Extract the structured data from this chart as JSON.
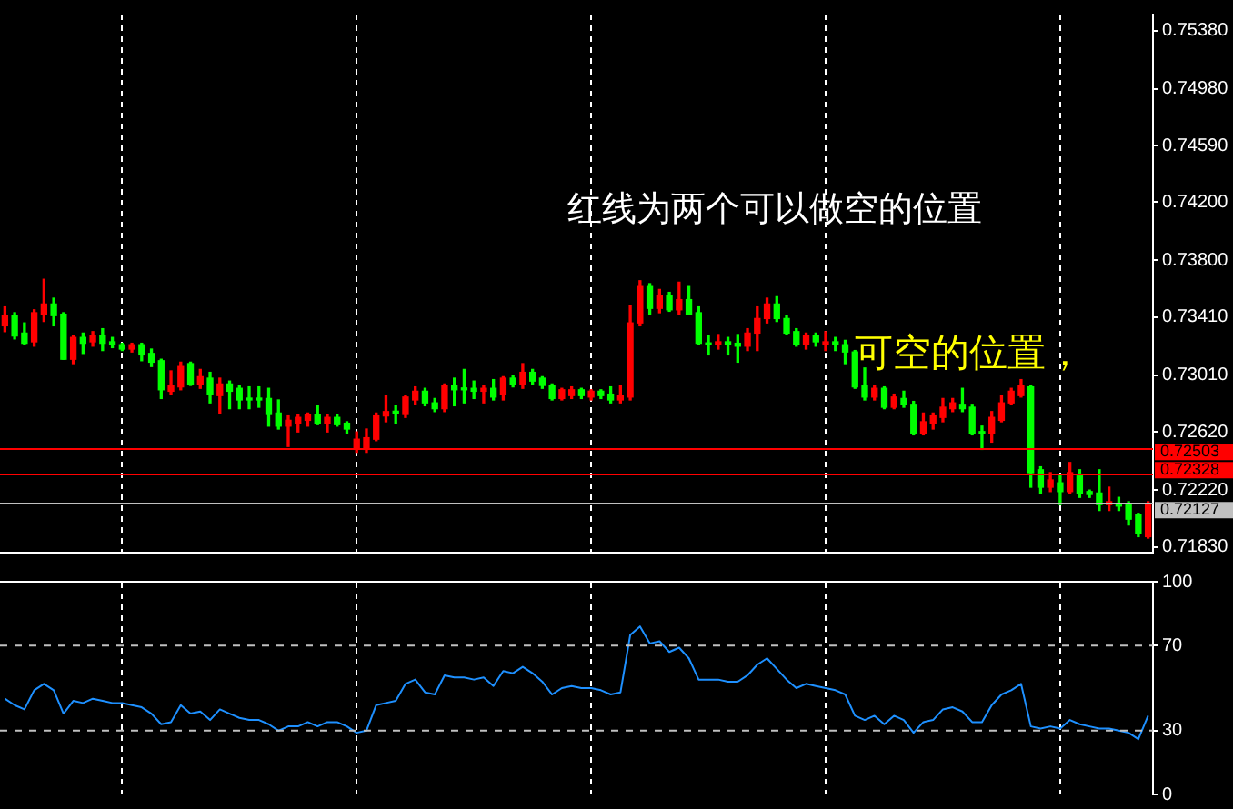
{
  "chart_data": [
    {
      "type": "candlestick",
      "categories": [
        null,
        null,
        null,
        null,
        null,
        null,
        null,
        null,
        null,
        null,
        null,
        null,
        null,
        null,
        null,
        null,
        null,
        null,
        null,
        null,
        null,
        null,
        null,
        null,
        null,
        null,
        null,
        null,
        null,
        null,
        null,
        null,
        null,
        null,
        null,
        null,
        null,
        null,
        null,
        null,
        null,
        null,
        null,
        null,
        null,
        null,
        null,
        null,
        null,
        null,
        null,
        null,
        null,
        null,
        null,
        null,
        null,
        null,
        null,
        null,
        null,
        null,
        null,
        null,
        null,
        null,
        null,
        null,
        null,
        null,
        null,
        null,
        null,
        null,
        null,
        null,
        null,
        null,
        null,
        null,
        null,
        null,
        null,
        null,
        null,
        null,
        null,
        null,
        null,
        null,
        null,
        null,
        null,
        null,
        null,
        null,
        null,
        null,
        null,
        null,
        null,
        null,
        null,
        null,
        null,
        null,
        null,
        null,
        null,
        null,
        null,
        null,
        null,
        null,
        null,
        null,
        null,
        null
      ],
      "ohlc": [
        [
          0.7335,
          0.7348,
          0.7331,
          0.7342
        ],
        [
          0.7342,
          0.7344,
          0.7326,
          0.7328
        ],
        [
          0.733,
          0.7337,
          0.7322,
          0.7323
        ],
        [
          0.7324,
          0.7346,
          0.7321,
          0.7344
        ],
        [
          0.7343,
          0.7367,
          0.7338,
          0.735
        ],
        [
          0.735,
          0.7354,
          0.7335,
          0.7342
        ],
        [
          0.7343,
          0.7344,
          0.7312,
          0.7312
        ],
        [
          0.7312,
          0.7328,
          0.7309,
          0.7327
        ],
        [
          0.7327,
          0.733,
          0.7316,
          0.7323
        ],
        [
          0.7324,
          0.7331,
          0.7321,
          0.7328
        ],
        [
          0.7328,
          0.7333,
          0.7318,
          0.7323
        ],
        [
          0.7324,
          0.7327,
          0.732,
          0.7322
        ],
        [
          0.7322,
          0.7323,
          0.7318,
          0.7319
        ],
        [
          0.7319,
          0.7323,
          0.7317,
          0.7322
        ],
        [
          0.7322,
          0.7323,
          0.7311,
          0.7315
        ],
        [
          0.7316,
          0.7319,
          0.7307,
          0.731
        ],
        [
          0.7311,
          0.7312,
          0.7285,
          0.7291
        ],
        [
          0.729,
          0.7304,
          0.7288,
          0.7294
        ],
        [
          0.7293,
          0.731,
          0.7291,
          0.7307
        ],
        [
          0.7309,
          0.731,
          0.7294,
          0.7295
        ],
        [
          0.7295,
          0.7305,
          0.7292,
          0.73
        ],
        [
          0.7299,
          0.7303,
          0.7282,
          0.7288
        ],
        [
          0.7287,
          0.7299,
          0.7275,
          0.7295
        ],
        [
          0.7295,
          0.7297,
          0.7278,
          0.729
        ],
        [
          0.7292,
          0.7294,
          0.7278,
          0.7284
        ],
        [
          0.7285,
          0.7293,
          0.7278,
          0.7284
        ],
        [
          0.7285,
          0.7293,
          0.7279,
          0.7284
        ],
        [
          0.7285,
          0.7292,
          0.7266,
          0.7274
        ],
        [
          0.7275,
          0.7284,
          0.7264,
          0.7266
        ],
        [
          0.7266,
          0.7273,
          0.7252,
          0.727
        ],
        [
          0.7268,
          0.7274,
          0.7262,
          0.7272
        ],
        [
          0.727,
          0.7275,
          0.7266,
          0.7274
        ],
        [
          0.7274,
          0.728,
          0.7267,
          0.7268
        ],
        [
          0.7268,
          0.7274,
          0.7262,
          0.7272
        ],
        [
          0.7272,
          0.7274,
          0.7266,
          0.7267
        ],
        [
          0.7268,
          0.7269,
          0.7261,
          0.7264
        ],
        [
          0.725,
          0.7262,
          0.7248,
          0.7257
        ],
        [
          0.725,
          0.7264,
          0.7248,
          0.7258
        ],
        [
          0.7257,
          0.7275,
          0.7256,
          0.7273
        ],
        [
          0.7273,
          0.7287,
          0.7269,
          0.7276
        ],
        [
          0.7276,
          0.728,
          0.7268,
          0.7275
        ],
        [
          0.7274,
          0.7287,
          0.7272,
          0.7286
        ],
        [
          0.7284,
          0.7293,
          0.7281,
          0.729
        ],
        [
          0.729,
          0.7292,
          0.728,
          0.7282
        ],
        [
          0.7282,
          0.7285,
          0.7276,
          0.7278
        ],
        [
          0.7278,
          0.7295,
          0.7276,
          0.7294
        ],
        [
          0.7294,
          0.7299,
          0.728,
          0.7291
        ],
        [
          0.7292,
          0.7305,
          0.7282,
          0.7291
        ],
        [
          0.7292,
          0.7297,
          0.7285,
          0.729
        ],
        [
          0.729,
          0.7294,
          0.7282,
          0.7292
        ],
        [
          0.7292,
          0.7298,
          0.7284,
          0.7286
        ],
        [
          0.7288,
          0.73,
          0.7284,
          0.7299
        ],
        [
          0.7299,
          0.7301,
          0.7293,
          0.7295
        ],
        [
          0.7295,
          0.7309,
          0.7292,
          0.7303
        ],
        [
          0.7303,
          0.7305,
          0.7295,
          0.7297
        ],
        [
          0.7299,
          0.73,
          0.7292,
          0.7294
        ],
        [
          0.7294,
          0.7295,
          0.7284,
          0.7285
        ],
        [
          0.7285,
          0.7292,
          0.7284,
          0.7291
        ],
        [
          0.7287,
          0.7293,
          0.7285,
          0.7291
        ],
        [
          0.7291,
          0.7292,
          0.7285,
          0.7287
        ],
        [
          0.7286,
          0.7291,
          0.7284,
          0.729
        ],
        [
          0.729,
          0.7291,
          0.7285,
          0.7287
        ],
        [
          0.7288,
          0.7293,
          0.7282,
          0.7284
        ],
        [
          0.7284,
          0.7294,
          0.7282,
          0.7287
        ],
        [
          0.7286,
          0.7349,
          0.7284,
          0.7337
        ],
        [
          0.7337,
          0.7366,
          0.7335,
          0.7362
        ],
        [
          0.7362,
          0.7364,
          0.7343,
          0.7347
        ],
        [
          0.7347,
          0.736,
          0.7344,
          0.7356
        ],
        [
          0.7356,
          0.7358,
          0.7345,
          0.7346
        ],
        [
          0.7346,
          0.7365,
          0.7343,
          0.7353
        ],
        [
          0.7353,
          0.7362,
          0.7343,
          0.7343
        ],
        [
          0.7344,
          0.7348,
          0.7322,
          0.7323
        ],
        [
          0.7323,
          0.7328,
          0.7315,
          0.7322
        ],
        [
          0.7322,
          0.7329,
          0.7319,
          0.7324
        ],
        [
          0.7324,
          0.7327,
          0.7315,
          0.7322
        ],
        [
          0.7323,
          0.7329,
          0.731,
          0.7321
        ],
        [
          0.7321,
          0.7333,
          0.7318,
          0.733
        ],
        [
          0.733,
          0.7348,
          0.7318,
          0.734
        ],
        [
          0.734,
          0.7354,
          0.7337,
          0.735
        ],
        [
          0.735,
          0.7355,
          0.7338,
          0.734
        ],
        [
          0.734,
          0.7342,
          0.7329,
          0.733
        ],
        [
          0.7331,
          0.7333,
          0.7321,
          0.7322
        ],
        [
          0.7322,
          0.733,
          0.7319,
          0.7328
        ],
        [
          0.7328,
          0.733,
          0.7321,
          0.7324
        ],
        [
          0.7322,
          0.7331,
          0.7318,
          0.7324
        ],
        [
          0.7324,
          0.7327,
          0.7318,
          0.7322
        ],
        [
          0.7322,
          0.7325,
          0.7309,
          0.7317
        ],
        [
          0.7317,
          0.7318,
          0.7292,
          0.7293
        ],
        [
          0.7294,
          0.7306,
          0.7284,
          0.7286
        ],
        [
          0.7286,
          0.7294,
          0.7284,
          0.7292
        ],
        [
          0.7292,
          0.7293,
          0.7278,
          0.7279
        ],
        [
          0.7279,
          0.7288,
          0.7278,
          0.7286
        ],
        [
          0.7285,
          0.729,
          0.7279,
          0.7281
        ],
        [
          0.7281,
          0.7283,
          0.726,
          0.7261
        ],
        [
          0.7261,
          0.7275,
          0.726,
          0.7269
        ],
        [
          0.7268,
          0.7275,
          0.7264,
          0.7273
        ],
        [
          0.7272,
          0.7285,
          0.7269,
          0.7279
        ],
        [
          0.7278,
          0.7285,
          0.7276,
          0.7282
        ],
        [
          0.7281,
          0.7292,
          0.7276,
          0.7278
        ],
        [
          0.7279,
          0.7281,
          0.726,
          0.7261
        ],
        [
          0.7262,
          0.7266,
          0.725,
          0.7261
        ],
        [
          0.7261,
          0.7276,
          0.7255,
          0.7272
        ],
        [
          0.727,
          0.7287,
          0.7269,
          0.7282
        ],
        [
          0.7282,
          0.7292,
          0.7281,
          0.729
        ],
        [
          0.7287,
          0.7298,
          0.7286,
          0.7294
        ],
        [
          0.7293,
          0.7294,
          0.7224,
          0.7234
        ],
        [
          0.7236,
          0.7238,
          0.722,
          0.7224
        ],
        [
          0.7224,
          0.7234,
          0.7221,
          0.7229
        ],
        [
          0.7227,
          0.7232,
          0.7212,
          0.7221
        ],
        [
          0.7221,
          0.7241,
          0.722,
          0.7234
        ],
        [
          0.7233,
          0.7236,
          0.7217,
          0.722
        ],
        [
          0.7221,
          0.7222,
          0.7217,
          0.7219
        ],
        [
          0.722,
          0.7236,
          0.7208,
          0.7212
        ],
        [
          0.7212,
          0.7224,
          0.7208,
          0.7214
        ],
        [
          0.7213,
          0.7217,
          0.7208,
          0.7211
        ],
        [
          0.7212,
          0.7214,
          0.7198,
          0.7202
        ],
        [
          0.7205,
          0.7206,
          0.719,
          0.7192
        ],
        [
          0.719,
          0.7214,
          0.7189,
          0.7213
        ]
      ],
      "colors": [
        "#ff0000",
        "#00ff00",
        "#00ff00",
        "#ff0000",
        "#ff0000",
        "#00ff00",
        "#00ff00",
        "#ff0000",
        "#00ff00",
        "#ff0000",
        "#00ff00",
        "#00ff00",
        "#00ff00",
        "#ff0000",
        "#00ff00",
        "#00ff00",
        "#00ff00",
        "#ff0000",
        "#ff0000",
        "#00ff00",
        "#ff0000",
        "#00ff00",
        "#ff0000",
        "#00ff00",
        "#00ff00",
        "#00ff00",
        "#00ff00",
        "#00ff00",
        "#00ff00",
        "#ff0000",
        "#ff0000",
        "#ff0000",
        "#00ff00",
        "#ff0000",
        "#00ff00",
        "#00ff00",
        "#ff0000",
        "#ff0000",
        "#ff0000",
        "#ff0000",
        "#00ff00",
        "#ff0000",
        "#ff0000",
        "#00ff00",
        "#00ff00",
        "#ff0000",
        "#00ff00",
        "#00ff00",
        "#00ff00",
        "#ff0000",
        "#00ff00",
        "#ff0000",
        "#00ff00",
        "#ff0000",
        "#00ff00",
        "#00ff00",
        "#00ff00",
        "#ff0000",
        "#ff0000",
        "#00ff00",
        "#ff0000",
        "#00ff00",
        "#00ff00",
        "#ff0000",
        "#ff0000",
        "#ff0000",
        "#00ff00",
        "#ff0000",
        "#00ff00",
        "#ff0000",
        "#00ff00",
        "#00ff00",
        "#00ff00",
        "#ff0000",
        "#00ff00",
        "#00ff00",
        "#ff0000",
        "#ff0000",
        "#ff0000",
        "#00ff00",
        "#00ff00",
        "#00ff00",
        "#ff0000",
        "#00ff00",
        "#ff0000",
        "#00ff00",
        "#00ff00",
        "#00ff00",
        "#00ff00",
        "#ff0000",
        "#00ff00",
        "#ff0000",
        "#00ff00",
        "#00ff00",
        "#ff0000",
        "#ff0000",
        "#ff0000",
        "#ff0000",
        "#00ff00",
        "#00ff00",
        "#00ff00",
        "#ff0000",
        "#ff0000",
        "#ff0000",
        "#ff0000",
        "#00ff00",
        "#00ff00",
        "#ff0000",
        "#00ff00",
        "#ff0000",
        "#00ff00",
        "#00ff00",
        "#00ff00",
        "#ff0000",
        "#00ff00",
        "#00ff00",
        "#00ff00",
        "#ff0000"
      ],
      "ylim": [
        0.7179,
        0.7549
      ],
      "yticks": [
        {
          "value": 0.7183,
          "label": "0.71830"
        },
        {
          "value": 0.7222,
          "label": "0.72220"
        },
        {
          "value": 0.7262,
          "label": "0.72620"
        },
        {
          "value": 0.7301,
          "label": "0.73010"
        },
        {
          "value": 0.7341,
          "label": "0.73410"
        },
        {
          "value": 0.738,
          "label": "0.73800"
        },
        {
          "value": 0.742,
          "label": "0.74200"
        },
        {
          "value": 0.7459,
          "label": "0.74590"
        },
        {
          "value": 0.7498,
          "label": "0.74980"
        },
        {
          "value": 0.7538,
          "label": "0.75380"
        }
      ],
      "grid": "x",
      "tick_labels": "y",
      "ref_lines": [
        {
          "axis": "y",
          "value": 0.72503,
          "label": "0.72503",
          "color": "#ff0000"
        },
        {
          "axis": "y",
          "value": 0.72328,
          "label": "0.72328",
          "color": "#ff0000"
        },
        {
          "axis": "y",
          "value": 0.72127,
          "label": "0.72127",
          "color": "#c0c0c0"
        }
      ],
      "annotations": [
        "红线为两个可以做空的位置",
        "可空的位置，"
      ]
    },
    {
      "type": "line",
      "categories": [
        null,
        null,
        null,
        null,
        null,
        null,
        null,
        null,
        null,
        null,
        null,
        null,
        null,
        null,
        null,
        null,
        null,
        null,
        null,
        null,
        null,
        null,
        null,
        null,
        null,
        null,
        null,
        null,
        null,
        null,
        null,
        null,
        null,
        null,
        null,
        null,
        null,
        null,
        null,
        null,
        null,
        null,
        null,
        null,
        null,
        null,
        null,
        null,
        null,
        null,
        null,
        null,
        null,
        null,
        null,
        null,
        null,
        null,
        null,
        null,
        null,
        null,
        null,
        null,
        null,
        null,
        null,
        null,
        null,
        null,
        null,
        null,
        null,
        null,
        null,
        null,
        null,
        null,
        null,
        null,
        null,
        null,
        null,
        null,
        null,
        null,
        null,
        null,
        null,
        null,
        null,
        null,
        null,
        null,
        null,
        null,
        null,
        null,
        null,
        null,
        null,
        null,
        null,
        null,
        null,
        null,
        null,
        null,
        null,
        null,
        null,
        null,
        null,
        null,
        null,
        null,
        null,
        null
      ],
      "series": [
        {
          "color": "#1e90ff",
          "values": [
            45,
            42,
            40,
            49,
            52,
            49,
            38,
            44,
            43,
            45,
            44,
            43,
            43,
            42,
            41,
            38,
            33,
            34,
            42,
            38,
            39,
            35,
            40,
            38,
            36,
            35,
            35,
            33,
            30,
            32,
            32,
            34,
            32,
            34,
            34,
            32,
            29,
            30,
            42,
            43,
            44,
            52,
            54,
            48,
            47,
            56,
            55,
            55,
            54,
            55,
            51,
            58,
            57,
            60,
            57,
            53,
            47,
            50,
            51,
            50,
            50,
            49,
            47,
            48,
            75,
            79,
            71,
            72,
            67,
            69,
            64,
            54,
            54,
            54,
            53,
            53,
            56,
            61,
            64,
            59,
            54,
            50,
            52,
            51,
            50,
            49,
            47,
            37,
            35,
            37,
            33,
            37,
            35,
            29,
            34,
            35,
            40,
            41,
            39,
            34,
            34,
            42,
            47,
            49,
            52,
            32,
            31,
            32,
            31,
            35,
            33,
            32,
            31,
            31,
            30,
            29,
            26,
            37
          ]
        }
      ],
      "ylim": [
        0,
        100
      ],
      "yticks": [
        0,
        30,
        70,
        100
      ],
      "grid": "x",
      "tick_labels": "y",
      "marker": "none",
      "line_style": "solid",
      "ref_lines": [
        {
          "axis": "y",
          "value": 70,
          "color": "#c0c0c0",
          "line_style": "dashed"
        },
        {
          "axis": "y",
          "value": 30,
          "color": "#c0c0c0",
          "line_style": "dashed"
        }
      ]
    }
  ]
}
